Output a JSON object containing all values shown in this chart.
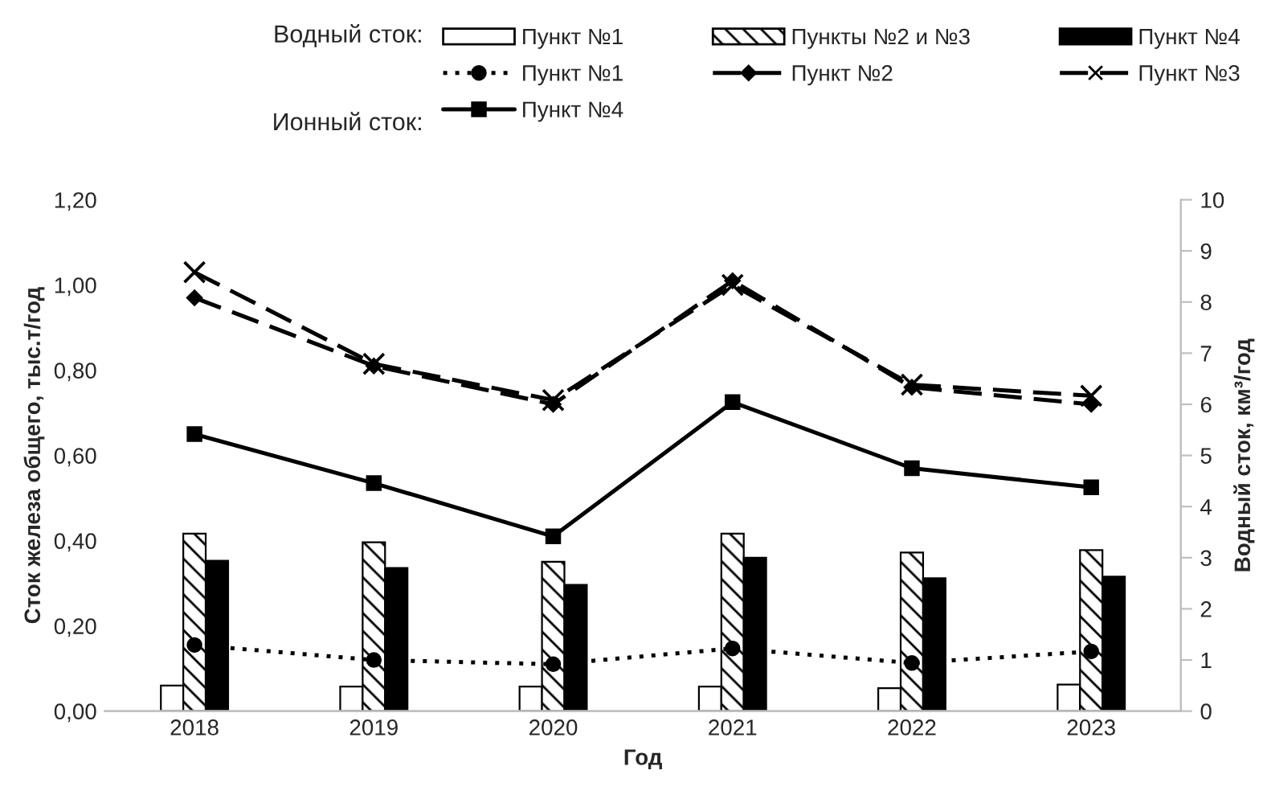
{
  "chart_data": {
    "type": "bar",
    "categories": [
      "2018",
      "2019",
      "2020",
      "2021",
      "2022",
      "2023"
    ],
    "xlabel": "Год",
    "ylabel": "Сток железа общего, тыс.т/год",
    "y2label": "Водный сток, км³/год",
    "series": [
      {
        "name": "Пункт №1",
        "axis": "y2",
        "color": "#ffffff",
        "values": [
          0.5,
          0.48,
          0.48,
          0.48,
          0.45,
          0.52
        ]
      },
      {
        "name": "Пункты №2 и №3",
        "axis": "y2",
        "color": "#ffffff",
        "values": [
          3.47,
          3.3,
          2.92,
          3.47,
          3.1,
          3.15
        ]
      },
      {
        "name": "Пункт №4",
        "axis": "y2",
        "color": "#000000",
        "values": [
          2.94,
          2.8,
          2.47,
          3.0,
          2.6,
          2.63
        ]
      },
      {
        "name": "Пункт №1",
        "type": "line",
        "color": "#000000",
        "marker": "circle",
        "line_style": "dotted",
        "values": [
          0.155,
          0.12,
          0.11,
          0.147,
          0.113,
          0.14
        ]
      },
      {
        "name": "Пункт №2",
        "type": "line",
        "color": "#000000",
        "marker": "diamond",
        "line_style": "dashed",
        "values": [
          0.97,
          0.81,
          0.72,
          1.01,
          0.76,
          0.72
        ]
      },
      {
        "name": "Пункт №3",
        "type": "line",
        "color": "#000000",
        "marker": "cross",
        "line_style": "dashed",
        "values": [
          1.03,
          0.815,
          0.73,
          1.0,
          0.766,
          0.74
        ]
      },
      {
        "name": "Пункт №4",
        "type": "line",
        "color": "#000000",
        "marker": "square",
        "line_style": "solid",
        "values": [
          0.65,
          0.535,
          0.41,
          0.725,
          0.57,
          0.525
        ]
      }
    ],
    "ylim": [
      0,
      1.2
    ],
    "yticks": [
      {
        "value": 0,
        "label": "0,00"
      },
      {
        "value": 0.2,
        "label": "0,20"
      },
      {
        "value": 0.4,
        "label": "0,40"
      },
      {
        "value": 0.6,
        "label": "0,60"
      },
      {
        "value": 0.8,
        "label": "0,80"
      },
      {
        "value": 1.0,
        "label": "1,00"
      },
      {
        "value": 1.2,
        "label": "1,20"
      }
    ],
    "y2lim": [
      0,
      10
    ],
    "y2ticks": [
      0,
      1,
      2,
      3,
      4,
      5,
      6,
      7,
      8,
      9,
      10
    ],
    "annotations": [
      "Водный сток:",
      "Ионный сток:"
    ],
    "legend": "top",
    "grid": false
  }
}
